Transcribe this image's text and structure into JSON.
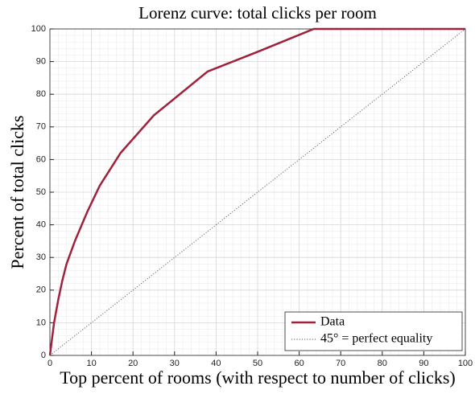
{
  "chart_data": {
    "type": "line",
    "title": "Lorenz curve: total clicks per room",
    "x_label": "Top percent of rooms (with respect to number of clicks)",
    "y_label": "Percent of total clicks",
    "series": [
      {
        "name": "Data",
        "color": "#a0213b",
        "style": "solid",
        "x": [
          0,
          1,
          2,
          3,
          4,
          6,
          9,
          12,
          17,
          25,
          38,
          50,
          63.5,
          100
        ],
        "values": [
          0,
          10,
          17,
          23,
          28,
          35,
          44,
          52,
          62,
          73.5,
          87,
          93,
          100,
          100
        ]
      },
      {
        "name": "45° = perfect equality",
        "color": "#555555",
        "style": "dotted",
        "x": [
          0,
          100
        ],
        "values": [
          0,
          100
        ]
      }
    ],
    "xlim": [
      0,
      100
    ],
    "ylim": [
      0,
      100
    ],
    "xticks": [
      0,
      10,
      20,
      30,
      40,
      50,
      60,
      70,
      80,
      90,
      100
    ],
    "yticks": [
      0,
      10,
      20,
      30,
      40,
      50,
      60,
      70,
      80,
      90,
      100
    ],
    "grid": true,
    "minor_grid": true,
    "legend": "lower right"
  }
}
